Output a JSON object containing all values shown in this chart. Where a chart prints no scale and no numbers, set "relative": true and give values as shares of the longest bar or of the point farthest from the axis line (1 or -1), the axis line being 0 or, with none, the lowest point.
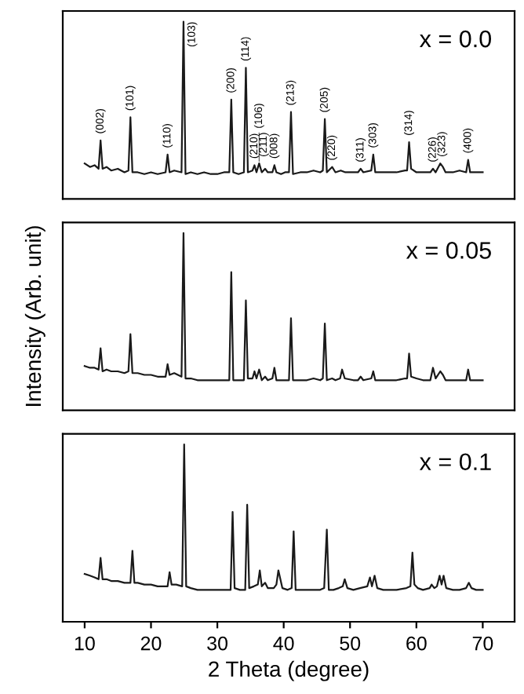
{
  "chart_data": [
    {
      "type": "line",
      "title": "x = 0.0",
      "relative": true,
      "xlim": [
        6.7,
        74.8
      ],
      "tick_labels": false,
      "grid": false,
      "marker": "none",
      "line_style": "solid",
      "series": [
        {
          "color": "#1a1a1a",
          "x": [
            10.0,
            10.8,
            11.5,
            12.1,
            12.4,
            12.7,
            13.3,
            14.0,
            15.0,
            16.0,
            16.6,
            16.9,
            17.2,
            18.0,
            19.0,
            20.0,
            21.0,
            22.2,
            22.5,
            22.8,
            23.5,
            24.6,
            24.9,
            25.2,
            26.0,
            27.0,
            28.0,
            29.0,
            30.0,
            31.0,
            31.8,
            32.1,
            32.4,
            33.2,
            34.0,
            34.3,
            34.6,
            35.3,
            35.6,
            35.9,
            36.3,
            36.7,
            37.2,
            37.6,
            38.3,
            38.6,
            38.9,
            39.6,
            40.2,
            40.8,
            41.1,
            41.4,
            42.5,
            43.5,
            44.5,
            45.5,
            45.9,
            46.2,
            46.5,
            47.3,
            47.8,
            48.6,
            49.3,
            50.5,
            51.2,
            51.6,
            52.0,
            53.2,
            53.5,
            53.8,
            55.0,
            56.0,
            57.0,
            58.3,
            58.6,
            58.9,
            59.2,
            60.0,
            61.0,
            62.1,
            62.5,
            62.9,
            63.6,
            64.0,
            64.4,
            65.5,
            66.5,
            67.5,
            67.8,
            68.1,
            69.0,
            70.0
          ],
          "values": [
            0.2,
            0.18,
            0.19,
            0.17,
            0.33,
            0.17,
            0.18,
            0.16,
            0.17,
            0.15,
            0.16,
            0.46,
            0.15,
            0.15,
            0.14,
            0.15,
            0.14,
            0.15,
            0.25,
            0.15,
            0.16,
            0.15,
            1.0,
            0.14,
            0.15,
            0.14,
            0.15,
            0.14,
            0.14,
            0.15,
            0.15,
            0.56,
            0.15,
            0.14,
            0.15,
            0.74,
            0.15,
            0.16,
            0.19,
            0.15,
            0.2,
            0.15,
            0.17,
            0.15,
            0.15,
            0.19,
            0.15,
            0.14,
            0.15,
            0.15,
            0.49,
            0.14,
            0.15,
            0.15,
            0.16,
            0.15,
            0.16,
            0.45,
            0.15,
            0.18,
            0.15,
            0.16,
            0.15,
            0.15,
            0.15,
            0.17,
            0.15,
            0.16,
            0.25,
            0.15,
            0.15,
            0.15,
            0.15,
            0.16,
            0.16,
            0.32,
            0.17,
            0.15,
            0.15,
            0.15,
            0.17,
            0.15,
            0.2,
            0.18,
            0.15,
            0.15,
            0.16,
            0.15,
            0.22,
            0.15,
            0.15,
            0.15
          ]
        }
      ],
      "annotations": [
        {
          "text": "(002)",
          "x": 12.4,
          "y": 0.33
        },
        {
          "text": "(101)",
          "x": 16.9,
          "y": 0.46
        },
        {
          "text": "(110)",
          "x": 22.5,
          "y": 0.25
        },
        {
          "text": "(103)",
          "x": 24.9,
          "y": 1.0
        },
        {
          "text": "(200)",
          "x": 32.1,
          "y": 0.56
        },
        {
          "text": "(114)",
          "x": 34.3,
          "y": 0.74
        },
        {
          "text": "(210)",
          "x": 35.6,
          "y": 0.19
        },
        {
          "text": "(106)",
          "x": 36.3,
          "y": 0.2
        },
        {
          "text": "(211)",
          "x": 37.0,
          "y": 0.2
        },
        {
          "text": "(008)",
          "x": 38.6,
          "y": 0.19
        },
        {
          "text": "(213)",
          "x": 41.1,
          "y": 0.49
        },
        {
          "text": "(205)",
          "x": 46.2,
          "y": 0.45
        },
        {
          "text": "(220)",
          "x": 47.3,
          "y": 0.18
        },
        {
          "text": "(311)",
          "x": 51.6,
          "y": 0.17
        },
        {
          "text": "(303)",
          "x": 53.5,
          "y": 0.25
        },
        {
          "text": "(314)",
          "x": 58.9,
          "y": 0.32
        },
        {
          "text": "(226)",
          "x": 62.5,
          "y": 0.17
        },
        {
          "text": "(323)",
          "x": 63.9,
          "y": 0.2
        },
        {
          "text": "(400)",
          "x": 67.8,
          "y": 0.22
        }
      ]
    },
    {
      "type": "line",
      "title": "x = 0.05",
      "ylabel": "Intensity (Arb. unit)",
      "relative": true,
      "xlim": [
        6.7,
        74.8
      ],
      "tick_labels": false,
      "grid": false,
      "marker": "none",
      "line_style": "solid",
      "series": [
        {
          "color": "#1a1a1a",
          "x": [
            10.0,
            10.8,
            11.5,
            12.1,
            12.4,
            12.7,
            13.3,
            14.0,
            15.0,
            16.0,
            16.6,
            16.9,
            17.2,
            18.0,
            19.0,
            20.0,
            21.0,
            22.2,
            22.5,
            22.8,
            23.5,
            24.6,
            24.9,
            25.2,
            26.0,
            27.0,
            28.0,
            29.0,
            30.0,
            31.0,
            31.8,
            32.1,
            32.4,
            33.2,
            34.0,
            34.3,
            34.6,
            35.3,
            35.6,
            35.9,
            36.3,
            36.7,
            37.2,
            37.6,
            38.3,
            38.6,
            38.9,
            39.6,
            40.2,
            40.8,
            41.1,
            41.4,
            42.5,
            43.5,
            44.5,
            45.5,
            45.9,
            46.2,
            46.5,
            47.3,
            47.8,
            48.5,
            48.8,
            49.2,
            50.5,
            51.2,
            51.6,
            52.0,
            53.2,
            53.5,
            53.8,
            55.0,
            56.0,
            57.0,
            58.3,
            58.6,
            58.9,
            59.2,
            60.0,
            61.0,
            62.1,
            62.5,
            62.9,
            63.6,
            64.0,
            64.4,
            65.5,
            66.5,
            67.5,
            67.8,
            68.1,
            69.0,
            70.0
          ],
          "values": [
            0.25,
            0.24,
            0.24,
            0.23,
            0.35,
            0.22,
            0.23,
            0.22,
            0.22,
            0.21,
            0.22,
            0.43,
            0.21,
            0.21,
            0.2,
            0.2,
            0.19,
            0.19,
            0.26,
            0.2,
            0.21,
            0.19,
            1.0,
            0.18,
            0.18,
            0.17,
            0.17,
            0.17,
            0.17,
            0.17,
            0.17,
            0.78,
            0.17,
            0.17,
            0.17,
            0.62,
            0.18,
            0.18,
            0.22,
            0.18,
            0.23,
            0.17,
            0.19,
            0.17,
            0.18,
            0.24,
            0.17,
            0.17,
            0.17,
            0.17,
            0.52,
            0.17,
            0.17,
            0.17,
            0.18,
            0.17,
            0.18,
            0.49,
            0.17,
            0.18,
            0.17,
            0.18,
            0.23,
            0.18,
            0.17,
            0.17,
            0.19,
            0.17,
            0.18,
            0.22,
            0.17,
            0.17,
            0.17,
            0.17,
            0.18,
            0.18,
            0.32,
            0.19,
            0.18,
            0.17,
            0.17,
            0.24,
            0.18,
            0.22,
            0.2,
            0.17,
            0.17,
            0.17,
            0.17,
            0.23,
            0.17,
            0.17,
            0.17
          ]
        }
      ]
    },
    {
      "type": "line",
      "title": "x = 0.1",
      "xlabel": "2 Theta (degree)",
      "relative": true,
      "xlim": [
        6.7,
        74.8
      ],
      "xticks": [
        10,
        20,
        30,
        40,
        50,
        60,
        70
      ],
      "tick_labels": "x",
      "grid": false,
      "marker": "none",
      "line_style": "solid",
      "series": [
        {
          "color": "#1a1a1a",
          "x": [
            10.0,
            10.8,
            11.5,
            12.1,
            12.4,
            12.7,
            13.3,
            14.0,
            15.0,
            16.0,
            16.9,
            17.2,
            17.5,
            18.0,
            19.0,
            20.0,
            21.0,
            22.5,
            22.8,
            23.1,
            23.8,
            24.7,
            25.0,
            25.3,
            26.0,
            27.0,
            28.0,
            29.0,
            30.0,
            31.0,
            32.0,
            32.3,
            32.6,
            33.4,
            34.2,
            34.5,
            34.8,
            35.5,
            36.1,
            36.4,
            36.7,
            37.2,
            37.6,
            38.5,
            38.9,
            39.2,
            39.8,
            40.6,
            41.2,
            41.5,
            41.8,
            42.5,
            43.5,
            44.5,
            45.5,
            46.1,
            46.5,
            46.8,
            47.5,
            48.3,
            48.9,
            49.2,
            49.6,
            50.5,
            51.5,
            52.6,
            53.0,
            53.3,
            53.7,
            54.1,
            55.0,
            56.0,
            57.0,
            58.5,
            59.1,
            59.4,
            59.7,
            60.2,
            61.0,
            62.0,
            62.3,
            62.7,
            63.1,
            63.5,
            63.8,
            64.1,
            64.5,
            65.5,
            66.5,
            67.5,
            67.9,
            68.3,
            69.0,
            70.0
          ],
          "values": [
            0.27,
            0.26,
            0.25,
            0.24,
            0.36,
            0.24,
            0.24,
            0.23,
            0.23,
            0.22,
            0.22,
            0.4,
            0.22,
            0.22,
            0.21,
            0.21,
            0.2,
            0.2,
            0.28,
            0.21,
            0.21,
            0.2,
            1.0,
            0.2,
            0.19,
            0.18,
            0.18,
            0.18,
            0.18,
            0.18,
            0.18,
            0.62,
            0.19,
            0.18,
            0.18,
            0.66,
            0.19,
            0.2,
            0.21,
            0.29,
            0.2,
            0.22,
            0.19,
            0.19,
            0.21,
            0.29,
            0.19,
            0.18,
            0.19,
            0.51,
            0.18,
            0.18,
            0.18,
            0.18,
            0.18,
            0.19,
            0.52,
            0.18,
            0.18,
            0.19,
            0.2,
            0.24,
            0.19,
            0.18,
            0.19,
            0.2,
            0.25,
            0.2,
            0.26,
            0.19,
            0.18,
            0.18,
            0.18,
            0.19,
            0.2,
            0.39,
            0.21,
            0.19,
            0.18,
            0.19,
            0.21,
            0.19,
            0.2,
            0.26,
            0.21,
            0.26,
            0.19,
            0.18,
            0.18,
            0.19,
            0.22,
            0.19,
            0.18,
            0.18
          ]
        }
      ]
    }
  ]
}
